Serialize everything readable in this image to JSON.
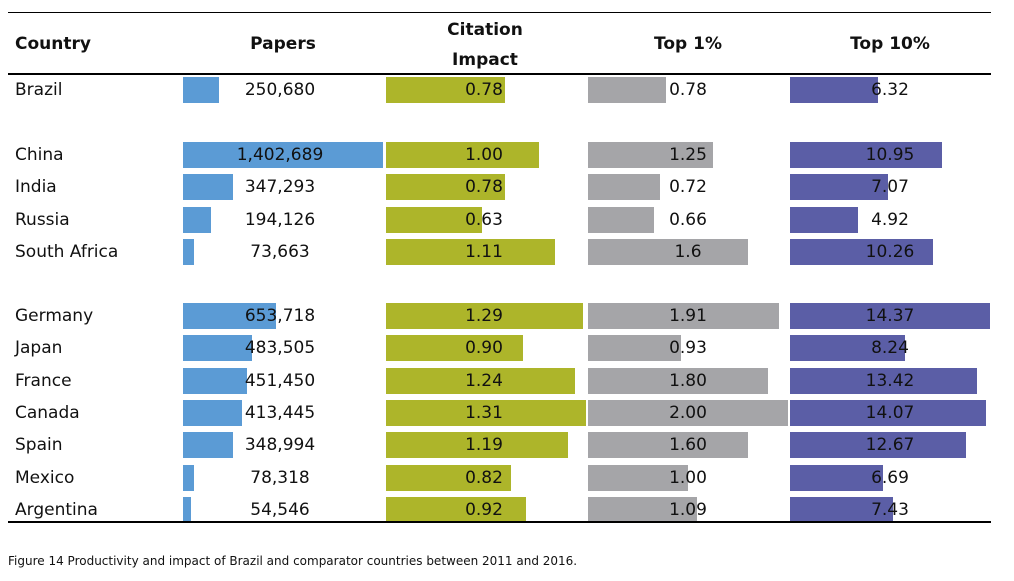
{
  "headers": {
    "country": "Country",
    "papers": "Papers",
    "citation_line1": "Citation",
    "citation_line2": "Impact",
    "top1": "Top 1%",
    "top10": "Top 10%"
  },
  "caption": "Figure 14 Productivity and impact of Brazil and comparator countries between 2011 and 2016.",
  "colors": {
    "papers": "#5b9bd5",
    "citation": "#adb52a",
    "top1": "#a5a5a8",
    "top10": "#5b5ea6"
  },
  "chart_data": {
    "type": "table",
    "columns": [
      "Country",
      "Papers",
      "Citation Impact",
      "Top 1%",
      "Top 10%"
    ],
    "max": {
      "papers": 1402689,
      "citation": 1.31,
      "top1": 2.0,
      "top10": 14.37
    },
    "rows": [
      {
        "country": "Brazil",
        "papers": 250680,
        "papers_label": "250,680",
        "citation": 0.78,
        "citation_label": "0.78",
        "top1": 0.78,
        "top1_label": "0.78",
        "top10": 6.32,
        "top10_label": "6.32",
        "group": 0
      },
      {
        "country": "China",
        "papers": 1402689,
        "papers_label": "1,402,689",
        "citation": 1.0,
        "citation_label": "1.00",
        "top1": 1.25,
        "top1_label": "1.25",
        "top10": 10.95,
        "top10_label": "10.95",
        "group": 1
      },
      {
        "country": "India",
        "papers": 347293,
        "papers_label": "347,293",
        "citation": 0.78,
        "citation_label": "0.78",
        "top1": 0.72,
        "top1_label": "0.72",
        "top10": 7.07,
        "top10_label": "7.07",
        "group": 1
      },
      {
        "country": "Russia",
        "papers": 194126,
        "papers_label": "194,126",
        "citation": 0.63,
        "citation_label": "0.63",
        "top1": 0.66,
        "top1_label": "0.66",
        "top10": 4.92,
        "top10_label": "4.92",
        "group": 1
      },
      {
        "country": "South Africa",
        "papers": 73663,
        "papers_label": "73,663",
        "citation": 1.11,
        "citation_label": "1.11",
        "top1": 1.6,
        "top1_label": "1.6",
        "top10": 10.26,
        "top10_label": "10.26",
        "group": 1
      },
      {
        "country": "Germany",
        "papers": 653718,
        "papers_label": "653,718",
        "citation": 1.29,
        "citation_label": "1.29",
        "top1": 1.91,
        "top1_label": "1.91",
        "top10": 14.37,
        "top10_label": "14.37",
        "group": 2
      },
      {
        "country": "Japan",
        "papers": 483505,
        "papers_label": "483,505",
        "citation": 0.9,
        "citation_label": "0.90",
        "top1": 0.93,
        "top1_label": "0.93",
        "top10": 8.24,
        "top10_label": "8.24",
        "group": 2
      },
      {
        "country": "France",
        "papers": 451450,
        "papers_label": "451,450",
        "citation": 1.24,
        "citation_label": "1.24",
        "top1": 1.8,
        "top1_label": "1.80",
        "top10": 13.42,
        "top10_label": "13.42",
        "group": 2
      },
      {
        "country": "Canada",
        "papers": 413445,
        "papers_label": "413,445",
        "citation": 1.31,
        "citation_label": "1.31",
        "top1": 2.0,
        "top1_label": "2.00",
        "top10": 14.07,
        "top10_label": "14.07",
        "group": 2
      },
      {
        "country": "Spain",
        "papers": 348994,
        "papers_label": "348,994",
        "citation": 1.19,
        "citation_label": "1.19",
        "top1": 1.6,
        "top1_label": "1.60",
        "top10": 12.67,
        "top10_label": "12.67",
        "group": 2
      },
      {
        "country": "Mexico",
        "papers": 78318,
        "papers_label": "78,318",
        "citation": 0.82,
        "citation_label": "0.82",
        "top1": 1.0,
        "top1_label": "1.00",
        "top10": 6.69,
        "top10_label": "6.69",
        "group": 2
      },
      {
        "country": "Argentina",
        "papers": 54546,
        "papers_label": "54,546",
        "citation": 0.92,
        "citation_label": "0.92",
        "top1": 1.09,
        "top1_label": "1.09",
        "top10": 7.43,
        "top10_label": "7.43",
        "group": 2
      }
    ]
  }
}
